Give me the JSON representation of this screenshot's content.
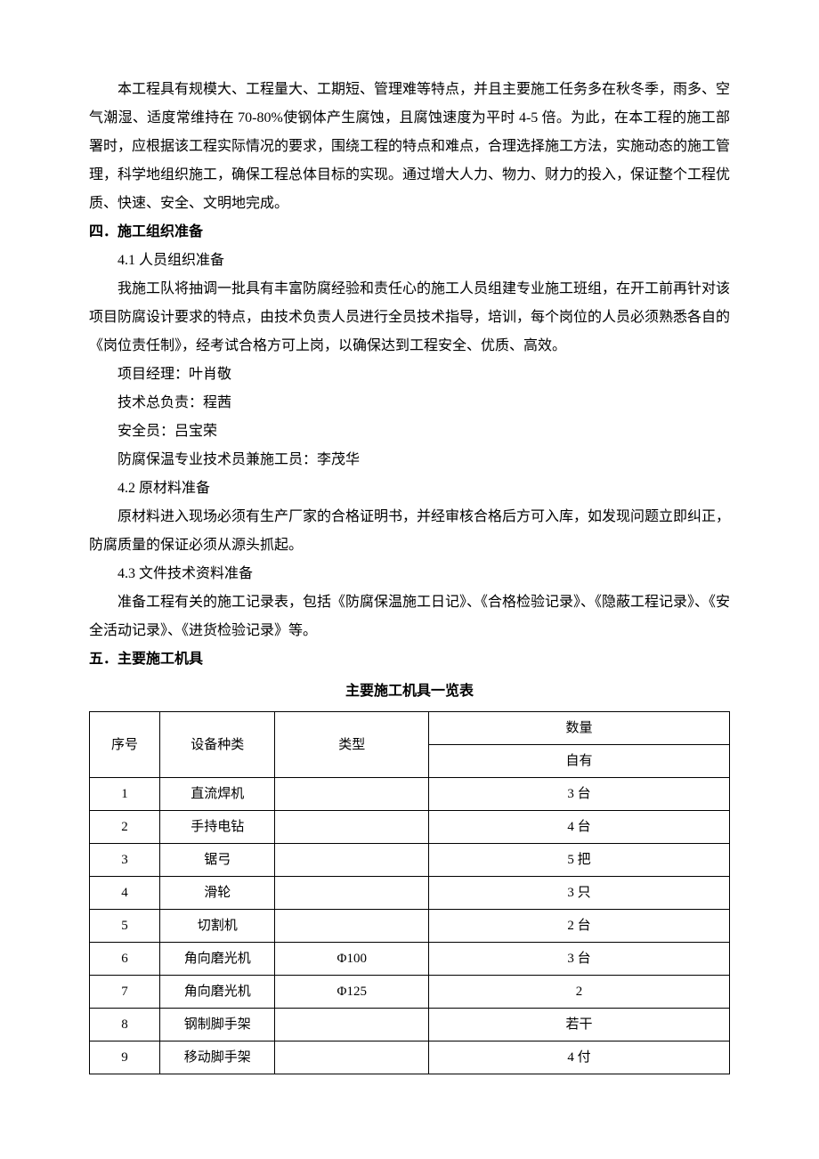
{
  "paragraphs": {
    "p1": "本工程具有规模大、工程量大、工期短、管理难等特点，并且主要施工任务多在秋冬季，雨多、空气潮湿、适度常维持在 70-80%使钢体产生腐蚀，且腐蚀速度为平时 4-5 倍。为此，在本工程的施工部署时，应根据该工程实际情况的要求，围绕工程的特点和难点，合理选择施工方法，实施动态的施工管理，科学地组织施工，确保工程总体目标的实现。通过增大人力、物力、财力的投入，保证整个工程优质、快速、安全、文明地完成。"
  },
  "section4": {
    "heading": "四．施工组织准备",
    "s41_title": "4.1 人员组织准备",
    "s41_body": "我施工队将抽调一批具有丰富防腐经验和责任心的施工人员组建专业施工班组，在开工前再针对该项目防腐设计要求的特点，由技术负责人员进行全员技术指导，培训，每个岗位的人员必须熟悉各自的《岗位责任制》，经考试合格方可上岗，以确保达到工程安全、优质、高效。",
    "roles": {
      "pm": "项目经理：叶肖敬",
      "tech": "技术总负责：程茜",
      "safe": "安全员：吕宝荣",
      "spec": "防腐保温专业技术员兼施工员：李茂华"
    },
    "s42_title": "4.2 原材料准备",
    "s42_body": "原材料进入现场必须有生产厂家的合格证明书，并经审核合格后方可入库，如发现问题立即纠正，防腐质量的保证必须从源头抓起。",
    "s43_title": "4.3 文件技术资料准备",
    "s43_body": "准备工程有关的施工记录表，包括《防腐保温施工日记》、《合格检验记录》、《隐蔽工程记录》、《安全活动记录》、《进货检验记录》等。"
  },
  "section5": {
    "heading": "五．主要施工机具",
    "table_title": "主要施工机具一览表"
  },
  "table": {
    "headers": {
      "seq": "序号",
      "kind": "设备种类",
      "type": "类型",
      "qty_group": "数量",
      "qty_own": "自有"
    },
    "rows": [
      {
        "seq": "1",
        "kind": "直流焊机",
        "type": "",
        "qty": "3 台"
      },
      {
        "seq": "2",
        "kind": "手持电钻",
        "type": "",
        "qty": "4 台"
      },
      {
        "seq": "3",
        "kind": "锯弓",
        "type": "",
        "qty": "5 把"
      },
      {
        "seq": "4",
        "kind": "滑轮",
        "type": "",
        "qty": "3 只"
      },
      {
        "seq": "5",
        "kind": "切割机",
        "type": "",
        "qty": "2 台"
      },
      {
        "seq": "6",
        "kind": "角向磨光机",
        "type": "Φ100",
        "qty": "3 台"
      },
      {
        "seq": "7",
        "kind": "角向磨光机",
        "type": "Φ125",
        "qty": "2"
      },
      {
        "seq": "8",
        "kind": "钢制脚手架",
        "type": "",
        "qty": "若干"
      },
      {
        "seq": "9",
        "kind": "移动脚手架",
        "type": "",
        "qty": "4 付"
      }
    ]
  }
}
